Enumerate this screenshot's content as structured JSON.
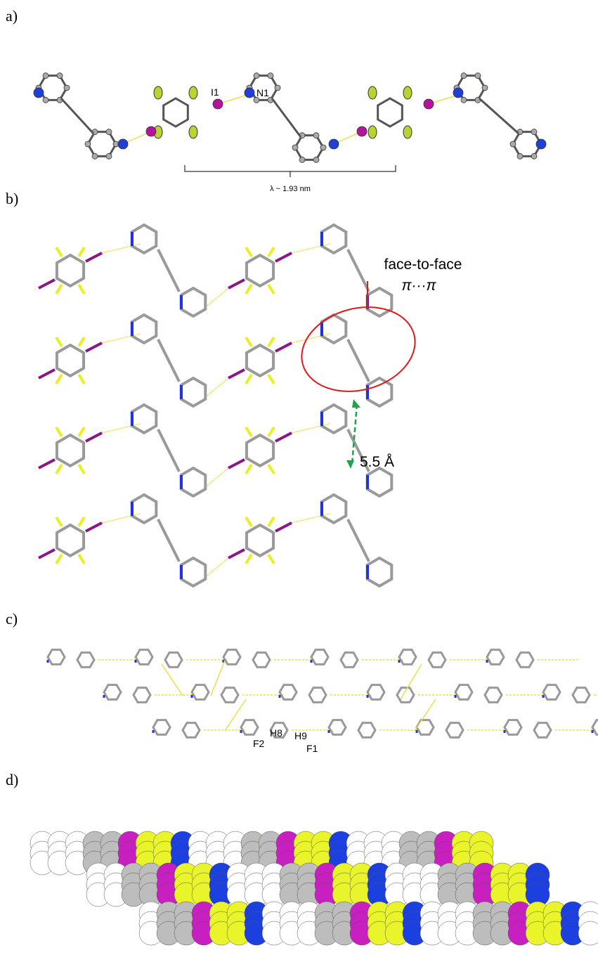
{
  "panels": [
    {
      "label": "a)",
      "atoms": [
        "I1",
        "N1"
      ],
      "period": "λ ~ 1.93 nm"
    },
    {
      "label": "b)",
      "annotation": {
        "line1": "face-to-face",
        "line2": "π···π"
      },
      "distance": "5.5 Å"
    },
    {
      "label": "c)",
      "atoms": [
        "F2",
        "H8",
        "H9",
        "F1"
      ]
    },
    {
      "label": "d)"
    }
  ]
}
